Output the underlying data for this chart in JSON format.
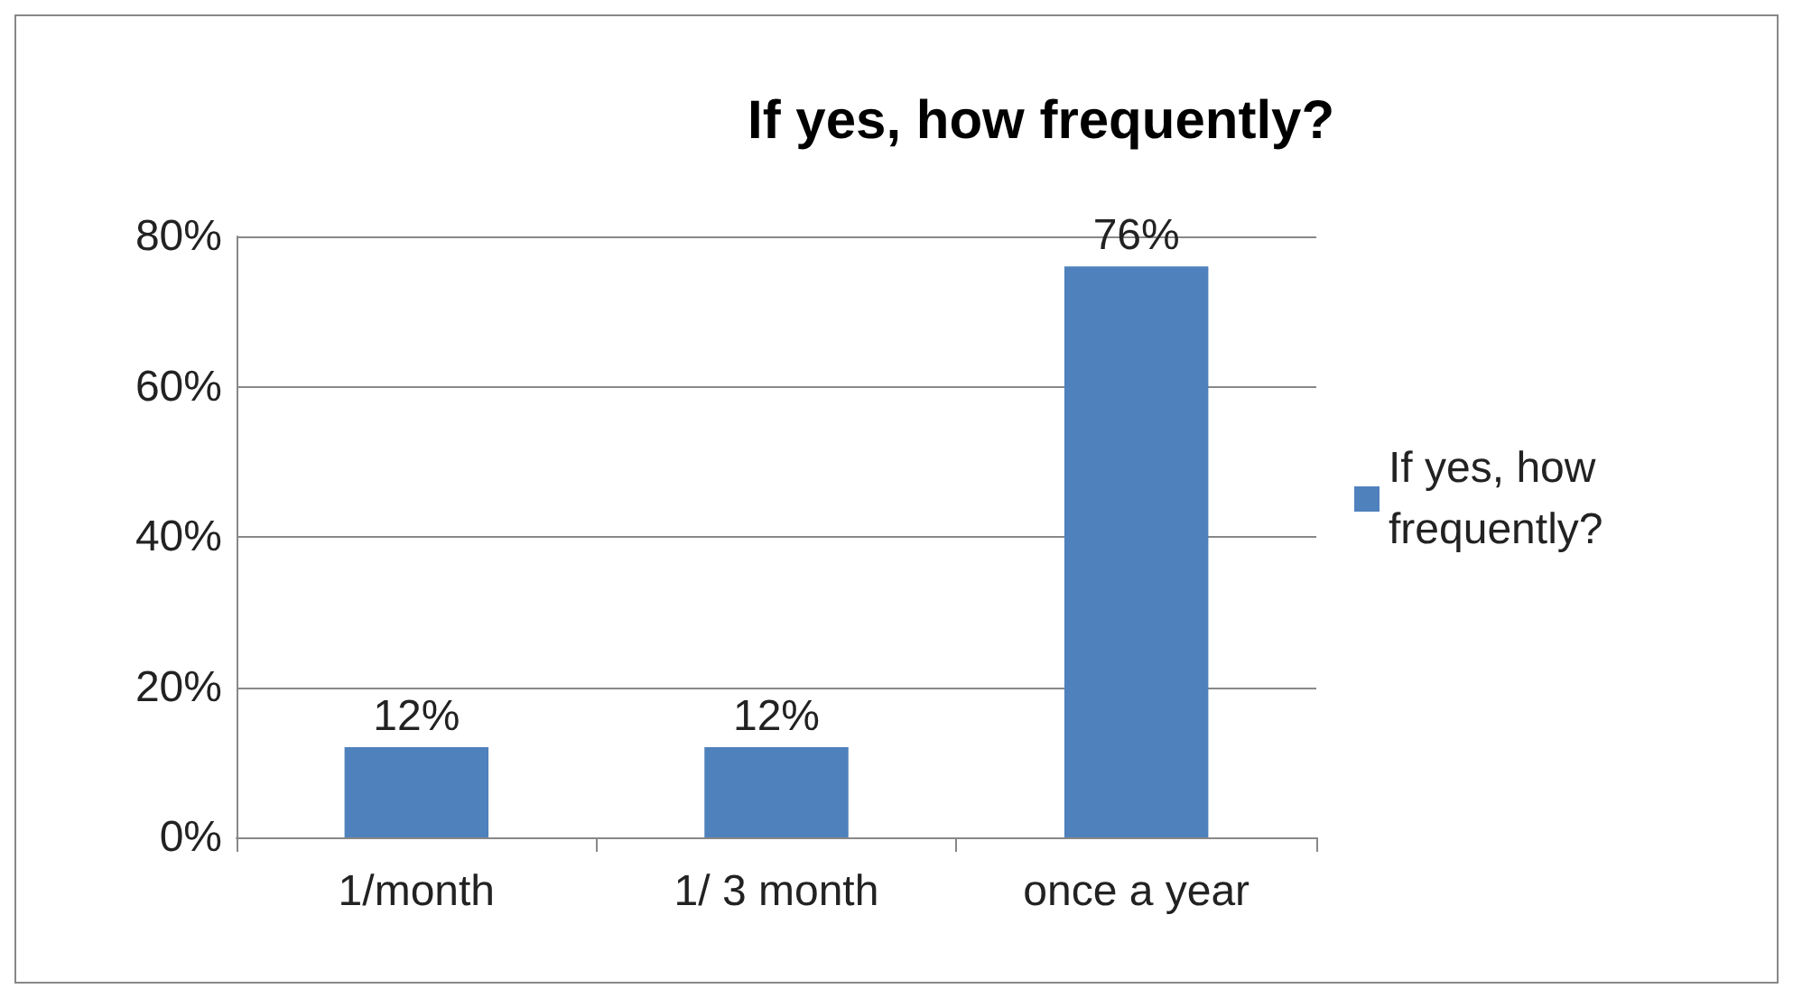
{
  "chart_data": {
    "type": "bar",
    "title": "If yes, how frequently?",
    "categories": [
      "1/month",
      "1/ 3 month",
      "once a year"
    ],
    "series": [
      {
        "name": "If yes, how frequently?",
        "color": "#4f81bd",
        "values": [
          12,
          12,
          76
        ],
        "value_labels": [
          "12%",
          "12%",
          "76%"
        ]
      }
    ],
    "ylim": [
      0,
      80
    ],
    "yticks": [
      {
        "value": 0,
        "label": "0%"
      },
      {
        "value": 20,
        "label": "20%"
      },
      {
        "value": 40,
        "label": "40%"
      },
      {
        "value": 60,
        "label": "60%"
      },
      {
        "value": 80,
        "label": "80%"
      }
    ],
    "grid": "y",
    "legend": "right"
  }
}
